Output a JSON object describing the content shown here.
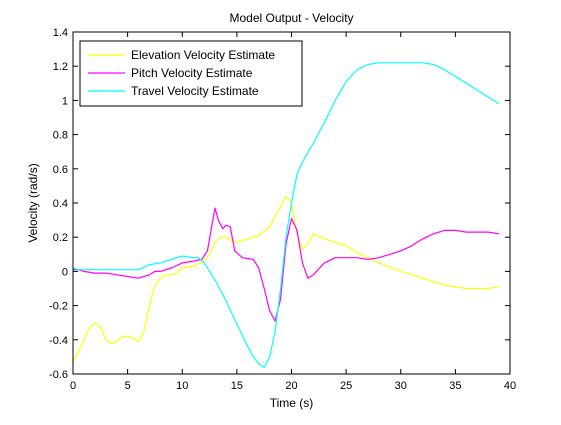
{
  "chart_data": {
    "type": "line",
    "title": "Model Output - Velocity",
    "xlabel": "Time (s)",
    "ylabel": "Velocity (rad/s)",
    "xlim": [
      0,
      40
    ],
    "ylim": [
      -0.6,
      1.4
    ],
    "xticks": [
      0,
      5,
      10,
      15,
      20,
      25,
      30,
      35,
      40
    ],
    "yticks": [
      -0.6,
      -0.4,
      -0.2,
      0,
      0.2,
      0.4,
      0.6,
      0.8,
      1,
      1.2,
      1.4
    ],
    "ytick_labels": [
      "-0.6",
      "-0.4",
      "-0.2",
      "0",
      "0.2",
      "0.4",
      "0.6",
      "0.8",
      "1",
      "1.2",
      "1.4"
    ],
    "grid": false,
    "legend_position": "top-left",
    "series": [
      {
        "name": "Elevation Velocity Estimate",
        "color": "#ffff00",
        "points": [
          [
            0,
            -0.53
          ],
          [
            0.5,
            -0.47
          ],
          [
            1,
            -0.4
          ],
          [
            1.5,
            -0.33
          ],
          [
            2,
            -0.3
          ],
          [
            2.5,
            -0.32
          ],
          [
            3,
            -0.4
          ],
          [
            3.5,
            -0.42
          ],
          [
            4,
            -0.41
          ],
          [
            4.5,
            -0.38
          ],
          [
            5,
            -0.38
          ],
          [
            5.5,
            -0.39
          ],
          [
            6,
            -0.41
          ],
          [
            6.5,
            -0.35
          ],
          [
            7,
            -0.2
          ],
          [
            7.5,
            -0.08
          ],
          [
            8,
            -0.04
          ],
          [
            8.5,
            -0.02
          ],
          [
            9,
            -0.02
          ],
          [
            9.5,
            -0.01
          ],
          [
            10,
            0.02
          ],
          [
            11,
            0.03
          ],
          [
            12,
            0.06
          ],
          [
            12.5,
            0.1
          ],
          [
            13,
            0.17
          ],
          [
            13.5,
            0.2
          ],
          [
            14,
            0.2
          ],
          [
            14.5,
            0.18
          ],
          [
            15,
            0.17
          ],
          [
            16,
            0.19
          ],
          [
            17,
            0.21
          ],
          [
            18,
            0.26
          ],
          [
            19,
            0.38
          ],
          [
            19.5,
            0.44
          ],
          [
            20,
            0.4
          ],
          [
            20.5,
            0.22
          ],
          [
            21,
            0.13
          ],
          [
            21.5,
            0.16
          ],
          [
            22,
            0.22
          ],
          [
            23,
            0.19
          ],
          [
            24,
            0.17
          ],
          [
            25,
            0.15
          ],
          [
            26,
            0.11
          ],
          [
            27,
            0.08
          ],
          [
            28,
            0.05
          ],
          [
            30,
            0.0
          ],
          [
            32,
            -0.04
          ],
          [
            34,
            -0.08
          ],
          [
            35,
            -0.09
          ],
          [
            36,
            -0.1
          ],
          [
            37,
            -0.1
          ],
          [
            38,
            -0.1
          ],
          [
            39,
            -0.09
          ]
        ]
      },
      {
        "name": "Pitch Velocity Estimate",
        "color": "#ff00ff",
        "points": [
          [
            0,
            0.01
          ],
          [
            0.5,
            0.01
          ],
          [
            1,
            0.0
          ],
          [
            2,
            -0.01
          ],
          [
            3,
            -0.01
          ],
          [
            4,
            -0.02
          ],
          [
            5,
            -0.03
          ],
          [
            6,
            -0.04
          ],
          [
            6.5,
            -0.03
          ],
          [
            7,
            -0.02
          ],
          [
            7.5,
            0.0
          ],
          [
            8,
            0.0
          ],
          [
            9,
            0.02
          ],
          [
            10,
            0.05
          ],
          [
            11,
            0.06
          ],
          [
            11.8,
            0.07
          ],
          [
            12.3,
            0.12
          ],
          [
            12.8,
            0.3
          ],
          [
            13,
            0.37
          ],
          [
            13.3,
            0.3
          ],
          [
            13.7,
            0.25
          ],
          [
            14,
            0.27
          ],
          [
            14.4,
            0.26
          ],
          [
            14.8,
            0.12
          ],
          [
            15.5,
            0.08
          ],
          [
            16.5,
            0.07
          ],
          [
            17,
            0.02
          ],
          [
            17.5,
            -0.1
          ],
          [
            18,
            -0.23
          ],
          [
            18.5,
            -0.29
          ],
          [
            19,
            -0.16
          ],
          [
            19.5,
            0.16
          ],
          [
            20,
            0.31
          ],
          [
            20.5,
            0.24
          ],
          [
            21,
            0.05
          ],
          [
            21.5,
            -0.04
          ],
          [
            22,
            -0.02
          ],
          [
            23,
            0.05
          ],
          [
            24,
            0.08
          ],
          [
            25,
            0.08
          ],
          [
            26,
            0.08
          ],
          [
            27,
            0.07
          ],
          [
            28,
            0.08
          ],
          [
            29,
            0.1
          ],
          [
            30,
            0.12
          ],
          [
            31,
            0.15
          ],
          [
            32,
            0.19
          ],
          [
            33,
            0.22
          ],
          [
            34,
            0.24
          ],
          [
            35,
            0.24
          ],
          [
            36,
            0.23
          ],
          [
            37,
            0.23
          ],
          [
            38,
            0.23
          ],
          [
            39,
            0.22
          ]
        ]
      },
      {
        "name": "Travel Velocity Estimate",
        "color": "#00ffff",
        "points": [
          [
            0,
            0.02
          ],
          [
            0.5,
            0.01
          ],
          [
            1,
            0.01
          ],
          [
            2,
            0.01
          ],
          [
            3,
            0.01
          ],
          [
            4,
            0.01
          ],
          [
            5,
            0.01
          ],
          [
            6,
            0.01
          ],
          [
            7,
            0.04
          ],
          [
            8,
            0.05
          ],
          [
            9,
            0.07
          ],
          [
            10,
            0.09
          ],
          [
            11,
            0.08
          ],
          [
            11.5,
            0.08
          ],
          [
            12,
            0.05
          ],
          [
            12.5,
            0.0
          ],
          [
            13,
            -0.05
          ],
          [
            14,
            -0.17
          ],
          [
            15,
            -0.31
          ],
          [
            16,
            -0.44
          ],
          [
            16.5,
            -0.5
          ],
          [
            17,
            -0.54
          ],
          [
            17.5,
            -0.56
          ],
          [
            18,
            -0.5
          ],
          [
            18.5,
            -0.35
          ],
          [
            19,
            -0.1
          ],
          [
            19.5,
            0.2
          ],
          [
            20,
            0.4
          ],
          [
            20.5,
            0.57
          ],
          [
            21,
            0.64
          ],
          [
            22,
            0.75
          ],
          [
            23,
            0.87
          ],
          [
            24,
            1.0
          ],
          [
            25,
            1.11
          ],
          [
            26,
            1.18
          ],
          [
            27,
            1.21
          ],
          [
            28,
            1.22
          ],
          [
            29,
            1.22
          ],
          [
            30,
            1.22
          ],
          [
            31,
            1.22
          ],
          [
            32,
            1.22
          ],
          [
            33,
            1.21
          ],
          [
            34,
            1.18
          ],
          [
            35,
            1.14
          ],
          [
            36,
            1.1
          ],
          [
            37,
            1.06
          ],
          [
            38,
            1.02
          ],
          [
            39,
            0.98
          ]
        ]
      }
    ]
  }
}
